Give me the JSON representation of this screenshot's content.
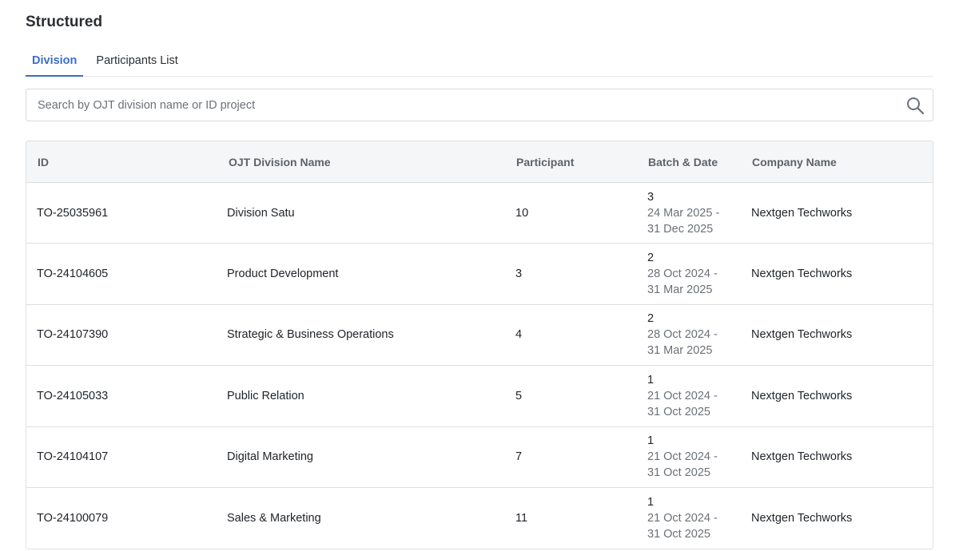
{
  "page": {
    "title": "Structured"
  },
  "tabs": [
    {
      "label": "Division",
      "active": true
    },
    {
      "label": "Participants List",
      "active": false
    }
  ],
  "search": {
    "placeholder": "Search by OJT division name or ID project",
    "value": "",
    "icon": "search-icon"
  },
  "table": {
    "headers": {
      "id": "ID",
      "name": "OJT Division Name",
      "participant": "Participant",
      "batch": "Batch & Date",
      "company": "Company Name"
    },
    "rows": [
      {
        "id": "TO-25035961",
        "name": "Division Satu",
        "participant": "10",
        "batch": "3",
        "date_start": "24 Mar 2025 -",
        "date_end": "31 Dec 2025",
        "company": "Nextgen Techworks"
      },
      {
        "id": "TO-24104605",
        "name": "Product Development",
        "participant": "3",
        "batch": "2",
        "date_start": "28 Oct 2024 -",
        "date_end": "31 Mar 2025",
        "company": "Nextgen Techworks"
      },
      {
        "id": "TO-24107390",
        "name": "Strategic & Business Operations",
        "participant": "4",
        "batch": "2",
        "date_start": "28 Oct 2024 -",
        "date_end": "31 Mar 2025",
        "company": "Nextgen Techworks"
      },
      {
        "id": "TO-24105033",
        "name": "Public Relation",
        "participant": "5",
        "batch": "1",
        "date_start": "21 Oct 2024 -",
        "date_end": "31 Oct 2025",
        "company": "Nextgen Techworks"
      },
      {
        "id": "TO-24104107",
        "name": "Digital Marketing",
        "participant": "7",
        "batch": "1",
        "date_start": "21 Oct 2024 -",
        "date_end": "31 Oct 2025",
        "company": "Nextgen Techworks"
      },
      {
        "id": "TO-24100079",
        "name": "Sales & Marketing",
        "participant": "11",
        "batch": "1",
        "date_start": "21 Oct 2024 -",
        "date_end": "31 Oct 2025",
        "company": "Nextgen Techworks"
      }
    ]
  },
  "colors": {
    "accent": "#3a6fc4",
    "header_bg": "#f5f6f7",
    "border": "#dcdfe3",
    "muted_text": "#6b7178"
  }
}
